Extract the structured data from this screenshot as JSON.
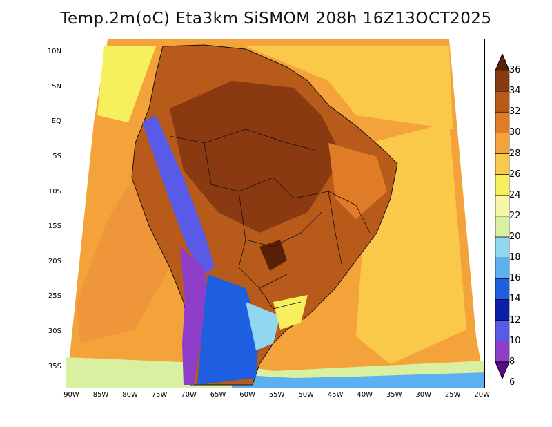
{
  "title": "Temp.2m(oC) Eta3km SiSMOM 208h 16Z13OCT2025",
  "map": {
    "lon_range": [
      -91,
      -19.5
    ],
    "lat_range": [
      -38,
      12
    ],
    "y_ticks": [
      {
        "lat": 10,
        "label": "10N"
      },
      {
        "lat": 5,
        "label": "5N"
      },
      {
        "lat": 0,
        "label": "EQ"
      },
      {
        "lat": -5,
        "label": "5S"
      },
      {
        "lat": -10,
        "label": "10S"
      },
      {
        "lat": -15,
        "label": "15S"
      },
      {
        "lat": -20,
        "label": "20S"
      },
      {
        "lat": -25,
        "label": "25S"
      },
      {
        "lat": -30,
        "label": "30S"
      },
      {
        "lat": -35,
        "label": "35S"
      }
    ],
    "x_ticks": [
      {
        "lon": -90,
        "label": "90W"
      },
      {
        "lon": -85,
        "label": "85W"
      },
      {
        "lon": -80,
        "label": "80W"
      },
      {
        "lon": -75,
        "label": "75W"
      },
      {
        "lon": -70,
        "label": "70W"
      },
      {
        "lon": -65,
        "label": "65W"
      },
      {
        "lon": -60,
        "label": "60W"
      },
      {
        "lon": -55,
        "label": "55W"
      },
      {
        "lon": -50,
        "label": "50W"
      },
      {
        "lon": -45,
        "label": "45W"
      },
      {
        "lon": -40,
        "label": "40W"
      },
      {
        "lon": -35,
        "label": "35W"
      },
      {
        "lon": -30,
        "label": "30W"
      },
      {
        "lon": -25,
        "label": "25W"
      },
      {
        "lon": -20,
        "label": "20W"
      }
    ]
  },
  "colorbar": {
    "labels": [
      "36",
      "34",
      "32",
      "30",
      "28",
      "26",
      "24",
      "22",
      "20",
      "18",
      "16",
      "14",
      "12",
      "10",
      "8",
      "6"
    ],
    "colors": [
      "#5a1f08",
      "#8a3a10",
      "#b85a1a",
      "#e07c28",
      "#f4a33a",
      "#fbc94a",
      "#f6ef5e",
      "#f7f7a8",
      "#d8f0a0",
      "#8fd8f0",
      "#5ab0f0",
      "#1e5ee0",
      "#0b1fa8",
      "#5a5ae8",
      "#8e3ec8",
      "#5a0a8a"
    ]
  }
}
